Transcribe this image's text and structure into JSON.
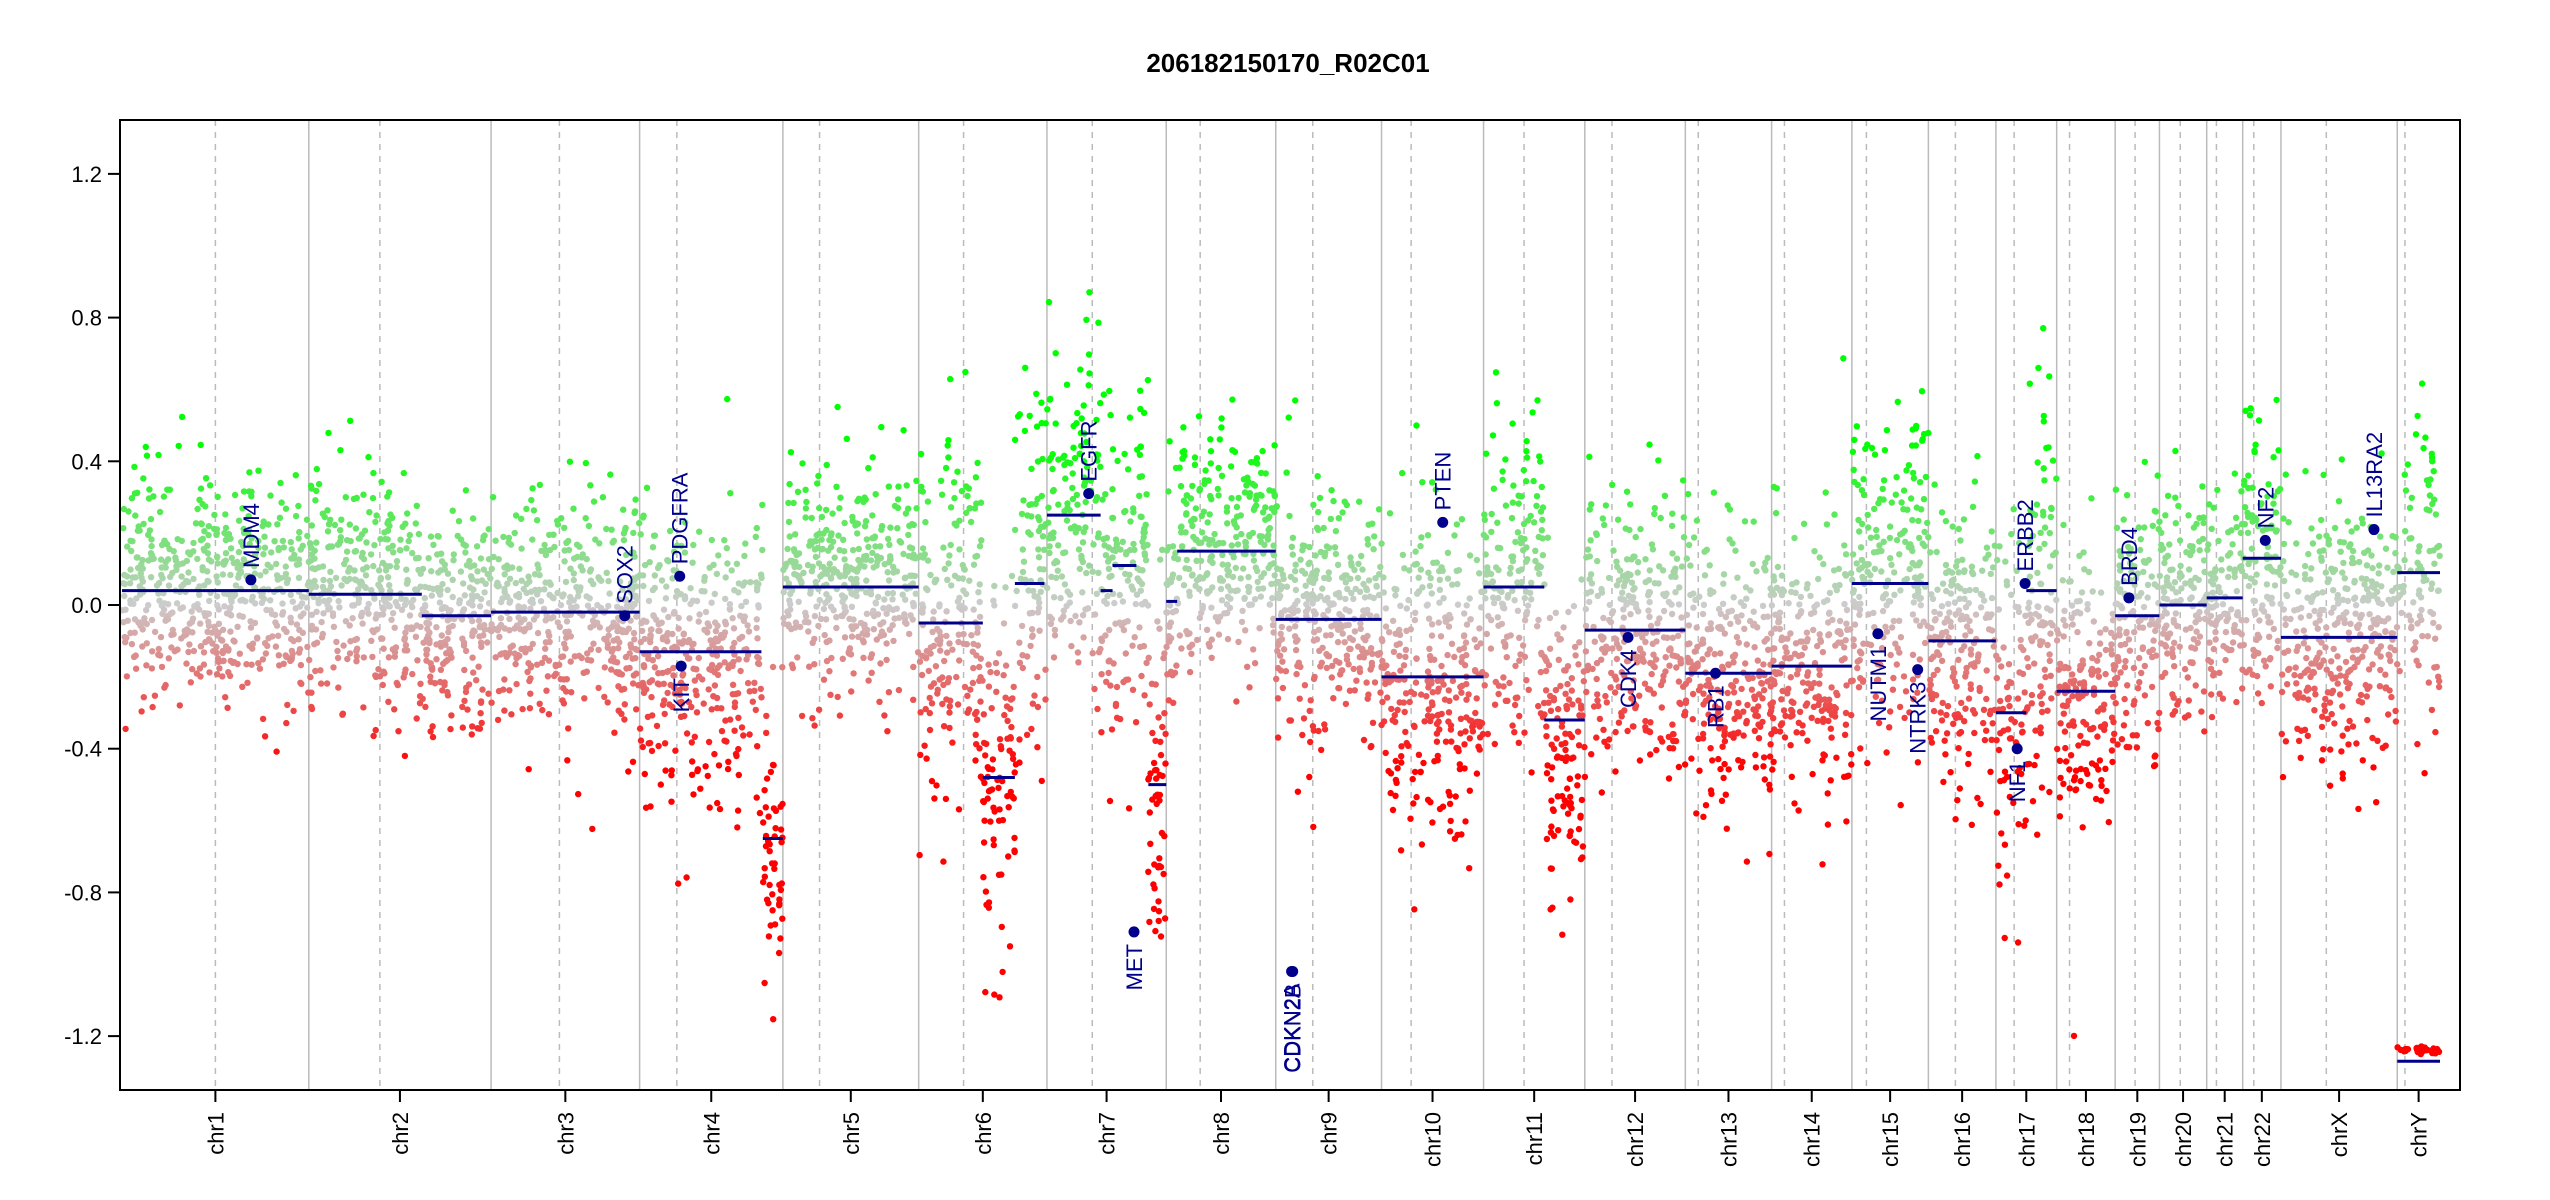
{
  "chart_data": {
    "type": "scatter",
    "title": "206182150170_R02C01",
    "xlabel": "",
    "ylabel": "",
    "ylim": [
      -1.35,
      1.35
    ],
    "yticks": [
      "-1.2",
      "-0.8",
      "-0.4",
      "0.0",
      "0.4",
      "0.8",
      "1.2"
    ],
    "grid": false,
    "colors": {
      "gain": "#00ff00",
      "neutral": "#cccccc",
      "loss": "#ff0000",
      "segment": "#00008b",
      "gene": "#00008b",
      "chr_boundary": "#bbbbbb",
      "centromere": "#bbbbbb"
    },
    "chromosomes": [
      {
        "name": "chr1",
        "len": 249,
        "cen": 0.5,
        "mean": 0.04,
        "sd": 0.16
      },
      {
        "name": "chr2",
        "len": 243,
        "cen": 0.39,
        "mean": 0.03,
        "sd": 0.15
      },
      {
        "name": "chr3",
        "len": 198,
        "cen": 0.46,
        "mean": -0.02,
        "sd": 0.15
      },
      {
        "name": "chr4",
        "len": 191,
        "cen": 0.26,
        "mean": -0.12,
        "sd": 0.2
      },
      {
        "name": "chr5",
        "len": 181,
        "cen": 0.27,
        "mean": 0.05,
        "sd": 0.15
      },
      {
        "name": "chr6",
        "len": 171,
        "cen": 0.35,
        "mean": -0.05,
        "sd": 0.25
      },
      {
        "name": "chr7",
        "len": 159,
        "cen": 0.38,
        "mean": 0.2,
        "sd": 0.25
      },
      {
        "name": "chr8",
        "len": 146,
        "cen": 0.31,
        "mean": 0.15,
        "sd": 0.15
      },
      {
        "name": "chr9",
        "len": 141,
        "cen": 0.35,
        "mean": -0.04,
        "sd": 0.17
      },
      {
        "name": "chr10",
        "len": 136,
        "cen": 0.29,
        "mean": -0.15,
        "sd": 0.22
      },
      {
        "name": "chr11",
        "len": 135,
        "cen": 0.4,
        "mean": -0.05,
        "sd": 0.22
      },
      {
        "name": "chr12",
        "len": 134,
        "cen": 0.27,
        "mean": -0.07,
        "sd": 0.18
      },
      {
        "name": "chr13",
        "len": 115,
        "cen": 0.15,
        "mean": -0.19,
        "sd": 0.18
      },
      {
        "name": "chr14",
        "len": 107,
        "cen": 0.16,
        "mean": -0.17,
        "sd": 0.2
      },
      {
        "name": "chr15",
        "len": 102,
        "cen": 0.19,
        "mean": 0.06,
        "sd": 0.22
      },
      {
        "name": "chr16",
        "len": 90,
        "cen": 0.4,
        "mean": -0.1,
        "sd": 0.2
      },
      {
        "name": "chr17",
        "len": 81,
        "cen": 0.3,
        "mean": -0.1,
        "sd": 0.25
      },
      {
        "name": "chr18",
        "len": 78,
        "cen": 0.22,
        "mean": -0.24,
        "sd": 0.2
      },
      {
        "name": "chr19",
        "len": 59,
        "cen": 0.45,
        "mean": -0.03,
        "sd": 0.18
      },
      {
        "name": "chr20",
        "len": 63,
        "cen": 0.44,
        "mean": 0.0,
        "sd": 0.15
      },
      {
        "name": "chr21",
        "len": 48,
        "cen": 0.27,
        "mean": 0.02,
        "sd": 0.15
      },
      {
        "name": "chr22",
        "len": 51,
        "cen": 0.29,
        "mean": 0.13,
        "sd": 0.2
      },
      {
        "name": "chrX",
        "len": 155,
        "cen": 0.39,
        "mean": -0.05,
        "sd": 0.18
      },
      {
        "name": "chrY",
        "len": 57,
        "cen": 0.18,
        "mean": 0.05,
        "sd": 0.2
      }
    ],
    "segments": [
      {
        "chr": "chr1",
        "start": 0.0,
        "end": 1.0,
        "value": 0.04
      },
      {
        "chr": "chr2",
        "start": 0.0,
        "end": 0.62,
        "value": 0.03
      },
      {
        "chr": "chr2",
        "start": 0.62,
        "end": 1.0,
        "value": -0.03
      },
      {
        "chr": "chr3",
        "start": 0.0,
        "end": 1.0,
        "value": -0.02
      },
      {
        "chr": "chr4",
        "start": 0.0,
        "end": 0.85,
        "value": -0.13
      },
      {
        "chr": "chr4",
        "start": 0.86,
        "end": 1.0,
        "value": -0.65
      },
      {
        "chr": "chr5",
        "start": 0.0,
        "end": 1.0,
        "value": 0.05
      },
      {
        "chr": "chr6",
        "start": 0.0,
        "end": 0.5,
        "value": -0.05
      },
      {
        "chr": "chr6",
        "start": 0.5,
        "end": 0.75,
        "value": -0.48
      },
      {
        "chr": "chr6",
        "start": 0.75,
        "end": 0.98,
        "value": 0.06
      },
      {
        "chr": "chr7",
        "start": 0.0,
        "end": 0.45,
        "value": 0.25
      },
      {
        "chr": "chr7",
        "start": 0.45,
        "end": 0.55,
        "value": 0.04
      },
      {
        "chr": "chr7",
        "start": 0.55,
        "end": 0.75,
        "value": 0.11
      },
      {
        "chr": "chr7",
        "start": 0.85,
        "end": 1.0,
        "value": -0.5
      },
      {
        "chr": "chr8",
        "start": 0.0,
        "end": 0.1,
        "value": 0.01
      },
      {
        "chr": "chr8",
        "start": 0.1,
        "end": 1.0,
        "value": 0.15
      },
      {
        "chr": "chr9",
        "start": 0.0,
        "end": 1.0,
        "value": -0.04
      },
      {
        "chr": "chr10",
        "start": 0.0,
        "end": 1.0,
        "value": -0.2
      },
      {
        "chr": "chr11",
        "start": 0.0,
        "end": 0.6,
        "value": 0.05
      },
      {
        "chr": "chr11",
        "start": 0.6,
        "end": 1.0,
        "value": -0.32
      },
      {
        "chr": "chr12",
        "start": 0.0,
        "end": 1.0,
        "value": -0.07
      },
      {
        "chr": "chr13",
        "start": 0.0,
        "end": 1.0,
        "value": -0.19
      },
      {
        "chr": "chr14",
        "start": 0.0,
        "end": 1.0,
        "value": -0.17
      },
      {
        "chr": "chr15",
        "start": 0.0,
        "end": 1.0,
        "value": 0.06
      },
      {
        "chr": "chr16",
        "start": 0.0,
        "end": 1.0,
        "value": -0.1
      },
      {
        "chr": "chr17",
        "start": 0.0,
        "end": 0.5,
        "value": -0.3
      },
      {
        "chr": "chr17",
        "start": 0.5,
        "end": 1.0,
        "value": 0.04
      },
      {
        "chr": "chr18",
        "start": 0.0,
        "end": 1.0,
        "value": -0.24
      },
      {
        "chr": "chr19",
        "start": 0.0,
        "end": 1.0,
        "value": -0.03
      },
      {
        "chr": "chr20",
        "start": 0.0,
        "end": 1.0,
        "value": 0.0
      },
      {
        "chr": "chr21",
        "start": 0.0,
        "end": 1.0,
        "value": 0.02
      },
      {
        "chr": "chr22",
        "start": 0.0,
        "end": 1.0,
        "value": 0.13
      },
      {
        "chr": "chrX",
        "start": 0.0,
        "end": 1.0,
        "value": -0.09
      },
      {
        "chr": "chrY",
        "start": 0.0,
        "end": 1.0,
        "value": 0.09
      },
      {
        "chr": "chrY",
        "start": 0.0,
        "end": 1.0,
        "value": -1.27
      }
    ],
    "genes": [
      {
        "name": "MDM4",
        "chr": "chr1",
        "pos": 0.69,
        "value": 0.07
      },
      {
        "name": "SOX2",
        "chr": "chr3",
        "pos": 0.9,
        "value": -0.03
      },
      {
        "name": "PDGFRA",
        "chr": "chr4",
        "pos": 0.28,
        "value": 0.08
      },
      {
        "name": "KIT",
        "chr": "chr4",
        "pos": 0.29,
        "value": -0.17
      },
      {
        "name": "EGFR",
        "chr": "chr7",
        "pos": 0.35,
        "value": 0.31
      },
      {
        "name": "MET",
        "chr": "chr7",
        "pos": 0.73,
        "value": -0.91
      },
      {
        "name": "CDKN2A",
        "chr": "chr9",
        "pos": 0.15,
        "value": -1.02
      },
      {
        "name": "CDKN2B",
        "chr": "chr9",
        "pos": 0.16,
        "value": -1.02
      },
      {
        "name": "PTEN",
        "chr": "chr10",
        "pos": 0.6,
        "value": 0.23
      },
      {
        "name": "CDK4",
        "chr": "chr12",
        "pos": 0.43,
        "value": -0.09
      },
      {
        "name": "RB1",
        "chr": "chr13",
        "pos": 0.35,
        "value": -0.19
      },
      {
        "name": "NUTM1",
        "chr": "chr15",
        "pos": 0.34,
        "value": -0.08
      },
      {
        "name": "NTRK3",
        "chr": "chr15",
        "pos": 0.86,
        "value": -0.18
      },
      {
        "name": "NF1",
        "chr": "chr17",
        "pos": 0.35,
        "value": -0.4
      },
      {
        "name": "ERBB2",
        "chr": "chr17",
        "pos": 0.48,
        "value": 0.06
      },
      {
        "name": "BRD4",
        "chr": "chr19",
        "pos": 0.31,
        "value": 0.02
      },
      {
        "name": "NF2",
        "chr": "chr22",
        "pos": 0.59,
        "value": 0.18
      },
      {
        "name": "IL13RA2",
        "chr": "chrX",
        "pos": 0.8,
        "value": 0.21
      }
    ]
  }
}
